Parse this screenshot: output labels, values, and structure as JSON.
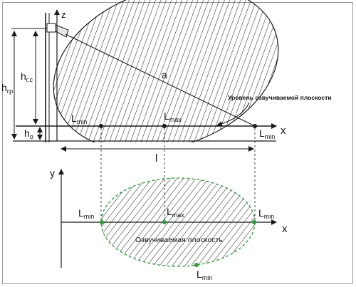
{
  "colors": {
    "ink": "#1a1a1a",
    "hatch": "#2b2b2b",
    "green": "#2e9a3a",
    "marker": "#1a1a1a"
  },
  "side_view": {
    "axis_z": "z",
    "axis_x": "x",
    "label_a": "a",
    "h_gr_main": "h",
    "h_gr_sub": "гр",
    "h_rs_main": "h",
    "h_rs_sub": "г.с",
    "h_o_main": "h",
    "h_o_sub": "o",
    "l_min_left_main": "L",
    "l_min_left_sub": "min",
    "l_max_main": "L",
    "l_max_sub": "max",
    "l_min_right_main": "L",
    "l_min_right_sub": "min",
    "l_length": "l",
    "plane_callout": "Уровень озвучиваемой плоскости"
  },
  "top_view": {
    "axis_y": "y",
    "axis_x": "x",
    "l_min_left_main": "L",
    "l_min_left_sub": "min",
    "l_max_main": "L",
    "l_max_sub": "max",
    "l_min_right_main": "L",
    "l_min_right_sub": "min",
    "l_min_bottom_main": "L",
    "l_min_bottom_sub": "min",
    "plane_label": "Озвучиваемая плоскость"
  }
}
